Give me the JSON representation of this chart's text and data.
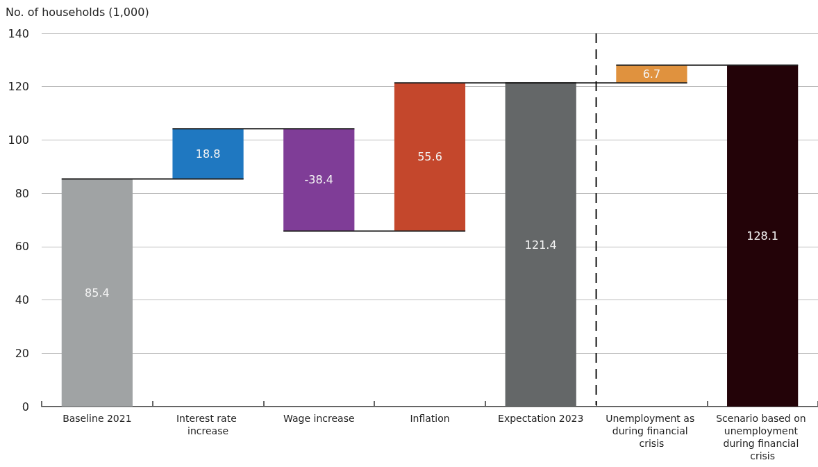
{
  "chart_data": {
    "type": "bar",
    "ylabel": "No. of households (1,000)",
    "categories": [
      "Baseline 2021",
      "Interest rate increase",
      "Wage increase",
      "Inflation",
      "Expectation 2023",
      "Unemployment as during financial crisis",
      "Scenario based on unemployment during financial crisis"
    ],
    "values": [
      85.4,
      18.8,
      -38.4,
      55.6,
      121.4,
      6.7,
      128.1
    ],
    "base": [
      0,
      85.4,
      104.2,
      65.8,
      0,
      121.4,
      0
    ],
    "colors": [
      "#a0a3a4",
      "#1f78c1",
      "#7f3d97",
      "#c4472c",
      "#646768",
      "#e0923e",
      "#230308"
    ],
    "ylim": [
      0,
      140
    ],
    "yticks": [
      0,
      20,
      40,
      60,
      80,
      100,
      120,
      140
    ],
    "grid": "y",
    "data_labels": true
  }
}
